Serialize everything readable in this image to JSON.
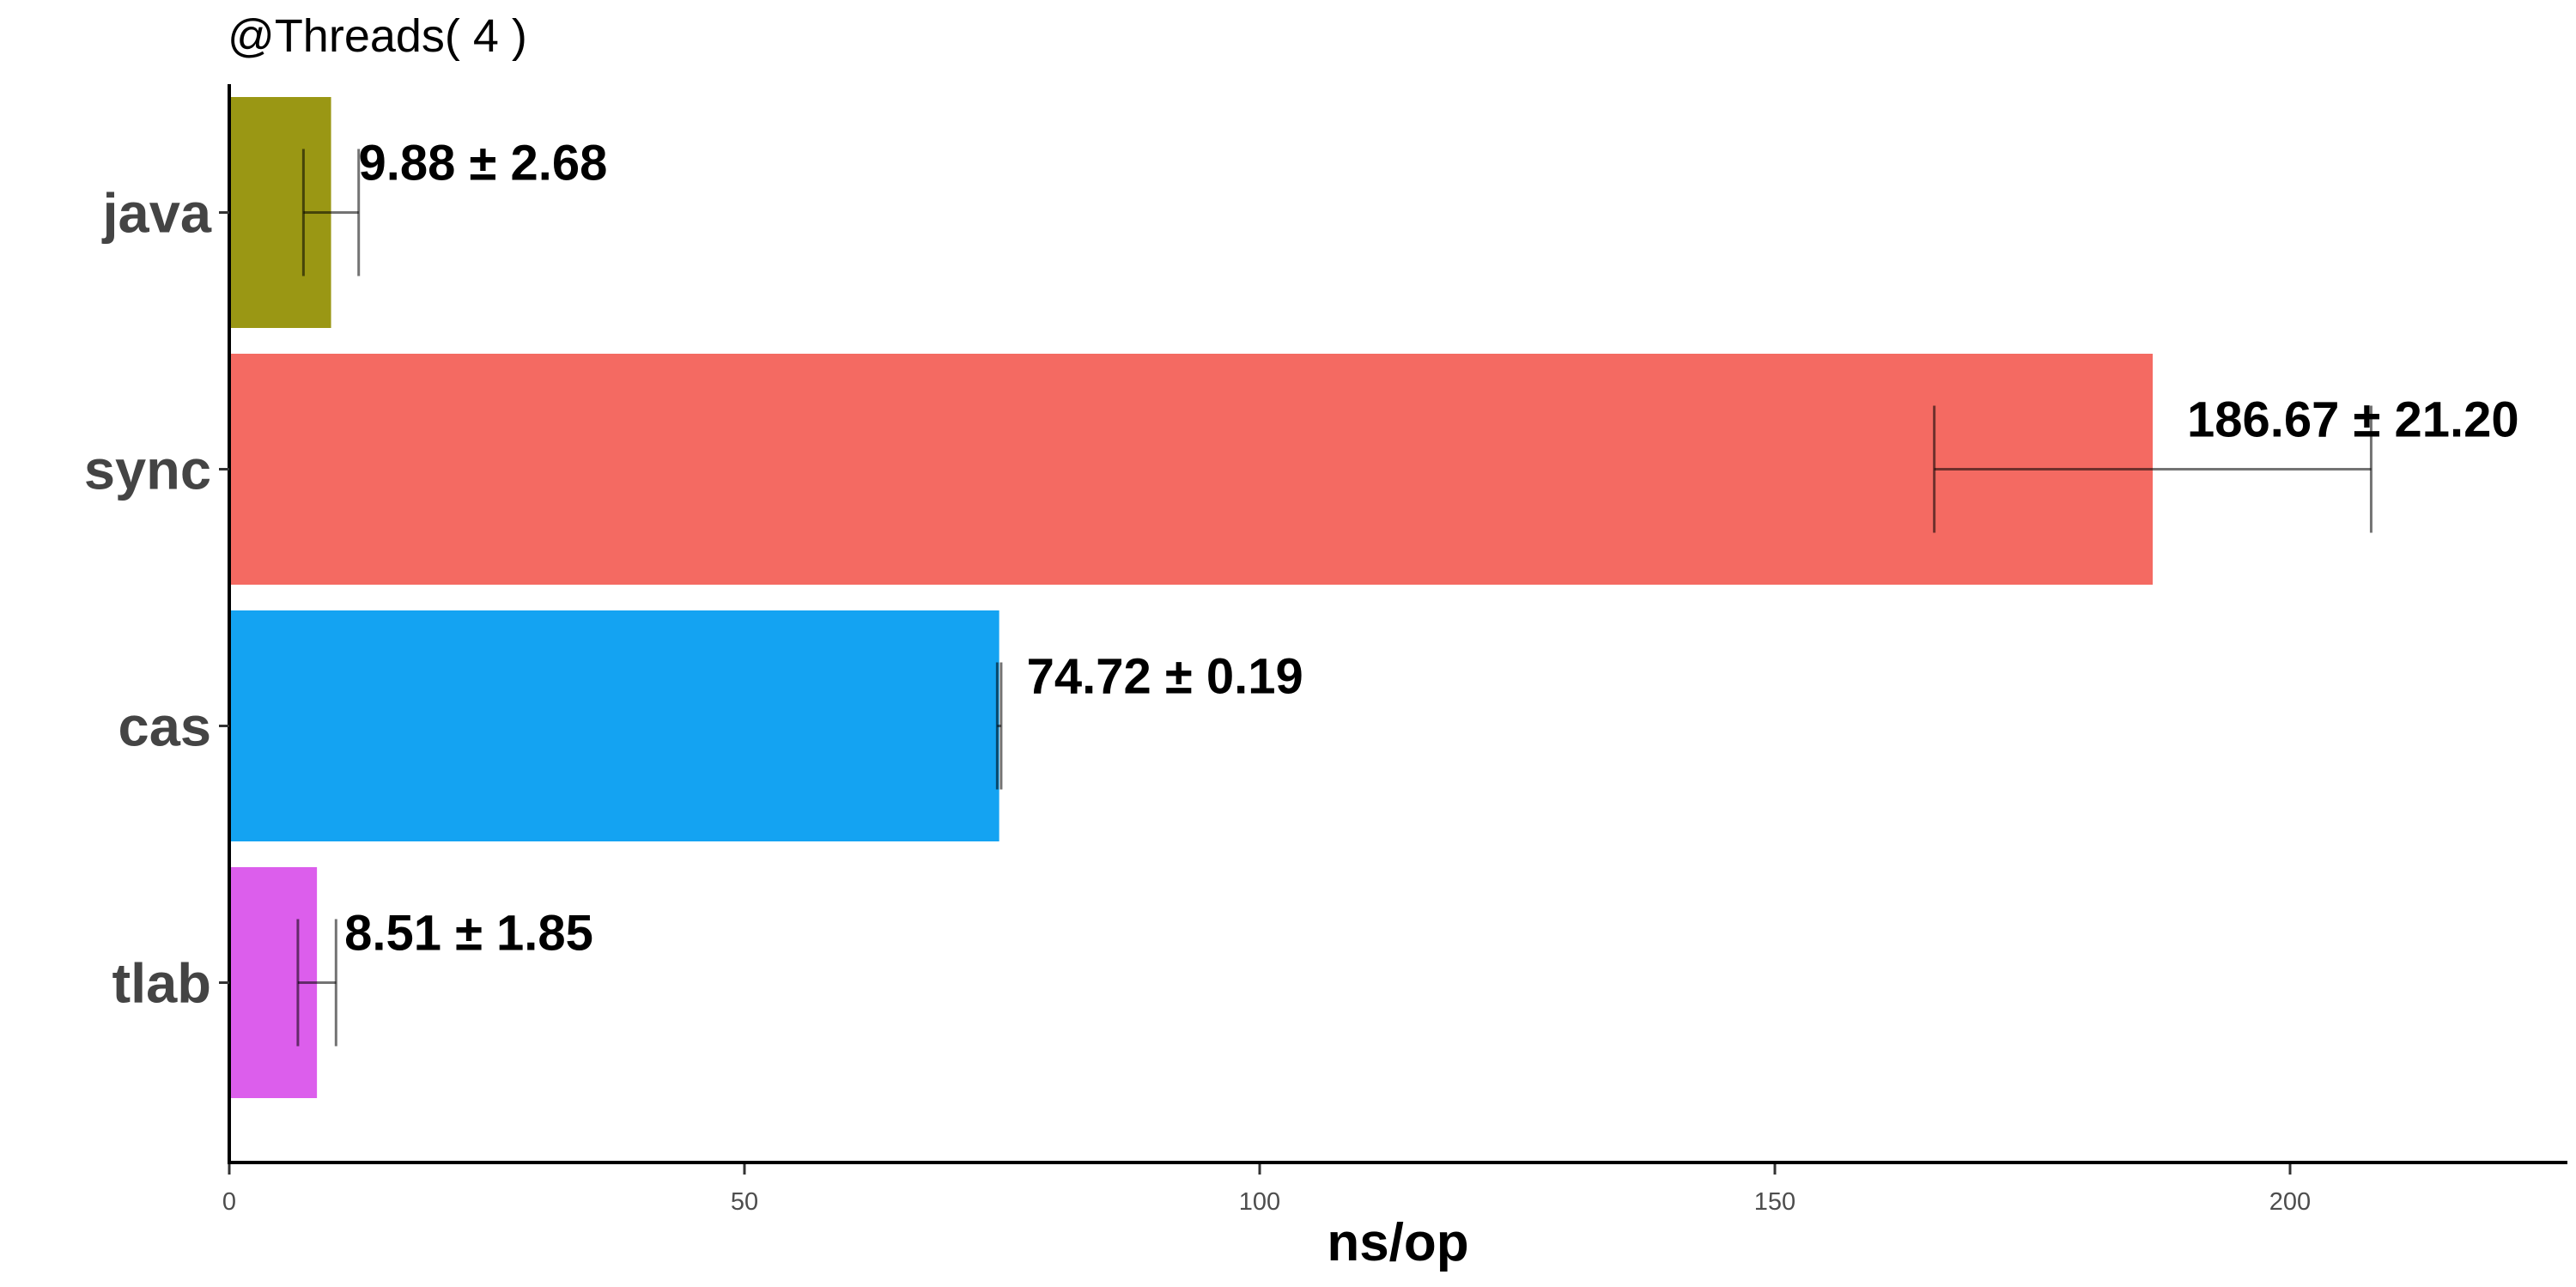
{
  "chart_data": {
    "type": "bar",
    "orientation": "horizontal",
    "title": "@Threads( 4 )",
    "xlabel": "ns/op",
    "ylabel": "",
    "xlim": [
      0,
      227
    ],
    "xticks": [
      0,
      50,
      100,
      150,
      200
    ],
    "grid": false,
    "legend": "none",
    "categories": [
      "java",
      "sync",
      "cas",
      "tlab"
    ],
    "values": [
      9.88,
      186.67,
      74.72,
      8.51
    ],
    "errors": [
      2.68,
      21.2,
      0.19,
      1.85
    ],
    "labels": [
      "9.88 ± 2.68",
      "186.67 ± 21.20",
      "74.72 ± 0.19",
      "8.51 ± 1.85"
    ],
    "colors": [
      "#9a9714",
      "#f46a62",
      "#14a3f2",
      "#dc5eec"
    ]
  }
}
